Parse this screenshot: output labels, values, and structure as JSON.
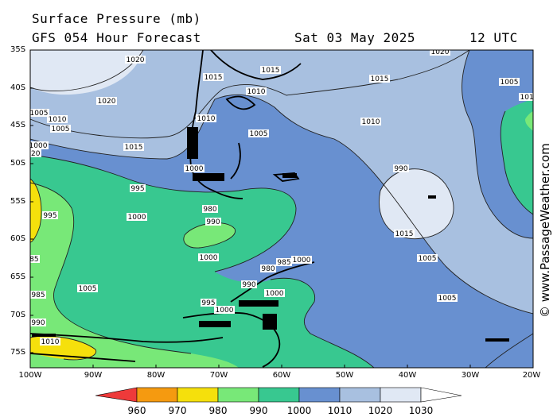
{
  "header": {
    "title": "Surface Pressure (mb)",
    "subtitle": "GFS 054 Hour Forecast",
    "date": "Sat 03 May 2025",
    "time": "12 UTC"
  },
  "map": {
    "lat_labels": [
      "35S",
      "40S",
      "45S",
      "50S",
      "55S",
      "60S",
      "65S",
      "70S",
      "75S"
    ],
    "lon_labels": [
      "100W",
      "90W",
      "80W",
      "70W",
      "60W",
      "50W",
      "40W",
      "30W",
      "20W"
    ],
    "isobar_labels": [
      "1020",
      "1015",
      "1015",
      "1020",
      "1010",
      "1015",
      "1005",
      "1020",
      "1005",
      "1010",
      "1010",
      "1010",
      "1005",
      "1000",
      "1015",
      "1010",
      "1005",
      "1000",
      "995",
      "990",
      "1020",
      "1000",
      "980",
      "995",
      "1015",
      "990",
      "985",
      "1000",
      "1005",
      "985",
      "1000",
      "1005",
      "980",
      "985",
      "995",
      "990",
      "990",
      "1000",
      "1010",
      "1005",
      "1000"
    ],
    "copyright": "© www.PassageWeather.com"
  },
  "colorbar": {
    "labels": [
      "960",
      "970",
      "980",
      "990",
      "1000",
      "1010",
      "1020",
      "1030"
    ],
    "colors": [
      "#ee3a3a",
      "#f59a10",
      "#f5e00c",
      "#78e878",
      "#38c890",
      "#6890d0",
      "#a8c0e0",
      "#e0e8f4"
    ]
  }
}
